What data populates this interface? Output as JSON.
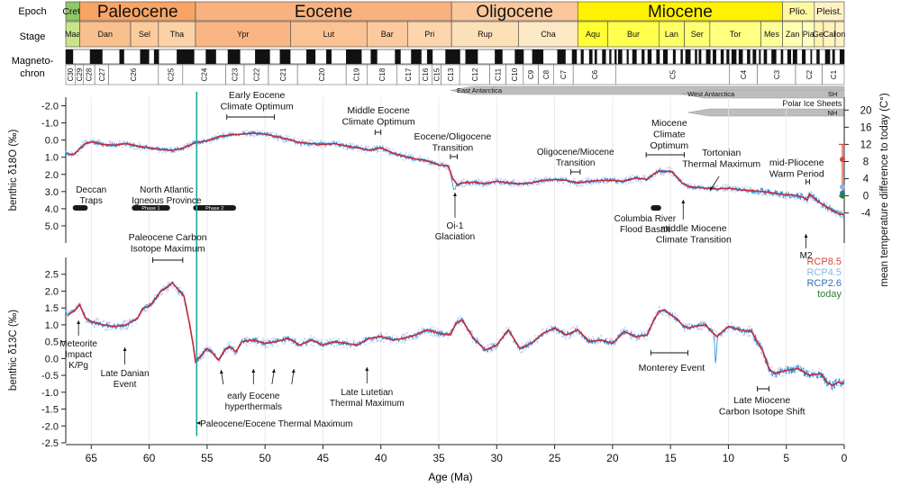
{
  "rows": {
    "epoch": "Epoch",
    "stage": "Stage",
    "magneto1": "Magneto-",
    "magneto2": "chron"
  },
  "epochs": [
    {
      "name": "Cret.",
      "start": 67.2,
      "end": 66.0,
      "color": "#8fc866",
      "label_size": "small"
    },
    {
      "name": "Paleocene",
      "start": 66.0,
      "end": 56.0,
      "color": "#f7a464",
      "label_size": "large"
    },
    {
      "name": "Eocene",
      "start": 56.0,
      "end": 33.9,
      "color": "#f8b27f",
      "label_size": "large"
    },
    {
      "name": "Oligocene",
      "start": 33.9,
      "end": 23.0,
      "color": "#fbc79b",
      "label_size": "large"
    },
    {
      "name": "Miocene",
      "start": 23.0,
      "end": 5.33,
      "color": "#fff200",
      "label_size": "large"
    },
    {
      "name": "Plio.",
      "start": 5.33,
      "end": 2.58,
      "color": "#fff7a1",
      "label_size": "small"
    },
    {
      "name": "Pleist.",
      "start": 2.58,
      "end": 0.0,
      "color": "#fff3c6",
      "label_size": "small"
    }
  ],
  "stages": [
    {
      "name": "Maa",
      "start": 67.2,
      "end": 66.0,
      "color": "#c9e38a"
    },
    {
      "name": "Dan",
      "start": 66.0,
      "end": 61.6,
      "color": "#f9bf8d"
    },
    {
      "name": "Sel",
      "start": 61.6,
      "end": 59.2,
      "color": "#fbcb9c"
    },
    {
      "name": "Tha",
      "start": 59.2,
      "end": 56.0,
      "color": "#fbd2a6"
    },
    {
      "name": "Ypr",
      "start": 56.0,
      "end": 47.8,
      "color": "#f9b684"
    },
    {
      "name": "Lut",
      "start": 47.8,
      "end": 41.2,
      "color": "#fbc293"
    },
    {
      "name": "Bar",
      "start": 41.2,
      "end": 37.7,
      "color": "#fcca9e"
    },
    {
      "name": "Pri",
      "start": 37.7,
      "end": 33.9,
      "color": "#fcd5ad"
    },
    {
      "name": "Rup",
      "start": 33.9,
      "end": 28.1,
      "color": "#fce0b8"
    },
    {
      "name": "Cha",
      "start": 28.1,
      "end": 23.0,
      "color": "#fde8c6"
    },
    {
      "name": "Aqu",
      "start": 23.0,
      "end": 20.4,
      "color": "#ffff33"
    },
    {
      "name": "Bur",
      "start": 20.4,
      "end": 16.0,
      "color": "#ffff4d"
    },
    {
      "name": "Lan",
      "start": 16.0,
      "end": 13.8,
      "color": "#ffff66"
    },
    {
      "name": "Ser",
      "start": 13.8,
      "end": 11.6,
      "color": "#ffff73"
    },
    {
      "name": "Tor",
      "start": 11.6,
      "end": 7.2,
      "color": "#ffff80"
    },
    {
      "name": "Mes",
      "start": 7.2,
      "end": 5.33,
      "color": "#ffff99"
    },
    {
      "name": "Zan",
      "start": 5.33,
      "end": 3.6,
      "color": "#ffffb3"
    },
    {
      "name": "Pia",
      "start": 3.6,
      "end": 2.58,
      "color": "#ffffbf"
    },
    {
      "name": "Gel",
      "start": 2.58,
      "end": 1.8,
      "color": "#fff2ae"
    },
    {
      "name": "Cal",
      "start": 1.8,
      "end": 0.78,
      "color": "#fff2ba"
    },
    {
      "name": "Ion",
      "start": 0.78,
      "end": 0.0,
      "color": "#fff2c7"
    }
  ],
  "chrons": [
    {
      "name": "C30",
      "start": 67.2,
      "end": 66.4
    },
    {
      "name": "C29",
      "start": 66.4,
      "end": 65.7
    },
    {
      "name": "C28",
      "start": 65.7,
      "end": 64.7
    },
    {
      "name": "C27",
      "start": 64.7,
      "end": 63.5
    },
    {
      "name": "C26",
      "start": 63.5,
      "end": 59.2
    },
    {
      "name": "C25",
      "start": 59.2,
      "end": 57.1
    },
    {
      "name": "C24",
      "start": 57.1,
      "end": 53.4
    },
    {
      "name": "C23",
      "start": 53.4,
      "end": 51.8
    },
    {
      "name": "C22",
      "start": 51.8,
      "end": 49.7
    },
    {
      "name": "C21",
      "start": 49.7,
      "end": 47.2
    },
    {
      "name": "C20",
      "start": 47.2,
      "end": 43.0
    },
    {
      "name": "C19",
      "start": 43.0,
      "end": 41.2
    },
    {
      "name": "C18",
      "start": 41.2,
      "end": 38.6
    },
    {
      "name": "C17",
      "start": 38.6,
      "end": 36.7
    },
    {
      "name": "C16",
      "start": 36.7,
      "end": 35.6
    },
    {
      "name": "C15",
      "start": 35.6,
      "end": 34.8
    },
    {
      "name": "C13",
      "start": 34.8,
      "end": 33.2
    },
    {
      "name": "C12",
      "start": 33.2,
      "end": 30.6
    },
    {
      "name": "C11",
      "start": 30.6,
      "end": 29.2
    },
    {
      "name": "C10",
      "start": 29.2,
      "end": 27.7
    },
    {
      "name": "C9",
      "start": 27.7,
      "end": 26.4
    },
    {
      "name": "C8",
      "start": 26.4,
      "end": 25.1
    },
    {
      "name": "C7",
      "start": 25.1,
      "end": 23.4
    },
    {
      "name": "C6",
      "start": 23.4,
      "end": 19.7
    },
    {
      "name": "C5",
      "start": 19.7,
      "end": 9.9
    },
    {
      "name": "C4",
      "start": 9.9,
      "end": 7.5
    },
    {
      "name": "C3",
      "start": 7.5,
      "end": 4.2
    },
    {
      "name": "C2",
      "start": 4.2,
      "end": 1.9
    },
    {
      "name": "C1",
      "start": 1.9,
      "end": 0.0
    }
  ],
  "ice_sheets": [
    {
      "name": "East Antarctica",
      "start": 34.0,
      "end": 0.0,
      "tag": ""
    },
    {
      "name": "West Antarctica",
      "start": 14.0,
      "end": 0.0,
      "tag": "SH"
    },
    {
      "name": "Polar Ice Sheets",
      "start": 0.0,
      "end": 0.0,
      "tag": ""
    },
    {
      "name": "",
      "start": 3.0,
      "end": 0.0,
      "tag": "NH"
    }
  ],
  "chart_data": {
    "type": "line",
    "xlabel": "Age (Ma)",
    "xlim": [
      67.2,
      0.0
    ],
    "x_ticks": [
      65,
      60,
      55,
      50,
      45,
      40,
      35,
      30,
      25,
      20,
      15,
      10,
      5,
      0
    ],
    "panels": [
      {
        "name": "d18O",
        "ylabel": "benthic δ18O (‰)",
        "ylim": [
          -2.5,
          6.0
        ],
        "inverted": true,
        "y_ticks": [
          -2.0,
          -1.0,
          0.0,
          1.0,
          2.0,
          3.0,
          4.0,
          5.0
        ],
        "tick_labels": [
          "-2.0",
          "-1.0",
          "0.0",
          "1.0",
          "2.0",
          "3.0",
          "4.0",
          "5.0"
        ],
        "right_axis": {
          "label": "mean temperature difference to today (C°)",
          "ticks": [
            20,
            16,
            12,
            8,
            4,
            0,
            -4
          ],
          "tick_labels": [
            "20",
            "16",
            "12",
            "8",
            "4",
            "0",
            "-4"
          ],
          "d18o_at_zero": 3.25,
          "d18o_per_degree": -0.25
        },
        "series_smooth": {
          "x": [
            67,
            66.5,
            66,
            65.5,
            65,
            64,
            63,
            62,
            61,
            60,
            59,
            58,
            57,
            56,
            55,
            54,
            53,
            52,
            51,
            50,
            49,
            48,
            47,
            46,
            45,
            44,
            43,
            42,
            41,
            40,
            39,
            38,
            37,
            36,
            35,
            34.2,
            33.8,
            33.4,
            33,
            32,
            31,
            30,
            29,
            28,
            27,
            26,
            25,
            24,
            23,
            22,
            21,
            20,
            19,
            18,
            17,
            16.5,
            16,
            15.5,
            15,
            14.5,
            14,
            13.5,
            13,
            12,
            11,
            10,
            9,
            8,
            7,
            6,
            5,
            4.5,
            4,
            3.5,
            3.2,
            3,
            2.5,
            2,
            1.5,
            1,
            0.5,
            0
          ],
          "values": [
            0.8,
            0.85,
            0.5,
            0.2,
            0.1,
            0.25,
            0.3,
            0.2,
            0.35,
            0.45,
            0.55,
            0.6,
            0.45,
            0.15,
            0.05,
            -0.2,
            -0.3,
            -0.35,
            -0.4,
            -0.35,
            -0.2,
            -0.05,
            0.15,
            0.2,
            0.25,
            0.2,
            0.35,
            0.45,
            0.6,
            0.45,
            0.75,
            0.95,
            1.1,
            1.2,
            1.45,
            1.5,
            2.25,
            2.6,
            2.5,
            2.45,
            2.55,
            2.4,
            2.5,
            2.55,
            2.5,
            2.35,
            2.3,
            2.35,
            2.5,
            2.4,
            2.35,
            2.35,
            2.4,
            2.2,
            2.3,
            2.0,
            1.8,
            1.85,
            1.8,
            2.1,
            2.5,
            2.7,
            2.75,
            2.8,
            2.85,
            2.8,
            2.9,
            2.95,
            3.0,
            3.1,
            3.2,
            3.2,
            3.25,
            3.35,
            3.5,
            3.15,
            3.45,
            3.7,
            3.9,
            4.1,
            4.3,
            4.35
          ]
        }
      },
      {
        "name": "d13C",
        "ylabel": "benthic δ13C (‰)",
        "ylim": [
          -2.5,
          3.0
        ],
        "inverted": false,
        "y_ticks": [
          2.5,
          2.0,
          1.5,
          1.0,
          0.5,
          0.0,
          -0.5,
          -1.0,
          -1.5,
          -2.0,
          -2.5
        ],
        "tick_labels": [
          "2.5",
          "2.0",
          "1.5",
          "1.0",
          "0.5",
          "0.0",
          "-0.5",
          "-1.0",
          "-1.5",
          "-2.0",
          "-2.5"
        ],
        "series_smooth": {
          "x": [
            67,
            66.5,
            66,
            65.5,
            65,
            64,
            63,
            62,
            61,
            60.5,
            60,
            59.5,
            59,
            58.5,
            58,
            57.5,
            57,
            56.5,
            56.2,
            56,
            55.5,
            55,
            54.5,
            54,
            53.5,
            53,
            52.5,
            52,
            51,
            50,
            49,
            48,
            47,
            46,
            45,
            44,
            43,
            42,
            41,
            40,
            39,
            38,
            37,
            36,
            35,
            34,
            33.5,
            33,
            32,
            31,
            30,
            29,
            28,
            27,
            26,
            25,
            24,
            23,
            22,
            21,
            20,
            19,
            18,
            17,
            16.5,
            16,
            15.5,
            15,
            14.5,
            14,
            13.5,
            13,
            12,
            11,
            10,
            9,
            8,
            7.5,
            7,
            6.5,
            6,
            5,
            4,
            3,
            2,
            1.5,
            1,
            0.5,
            0
          ],
          "values": [
            1.3,
            1.4,
            1.6,
            1.2,
            1.1,
            1.0,
            0.95,
            1.0,
            1.2,
            1.5,
            1.55,
            1.75,
            2.0,
            2.1,
            2.25,
            2.05,
            1.85,
            1.0,
            0.4,
            -0.1,
            0.1,
            0.3,
            0.15,
            -0.05,
            0.25,
            0.35,
            0.2,
            0.5,
            0.55,
            0.45,
            0.5,
            0.6,
            0.4,
            0.55,
            0.4,
            0.5,
            0.45,
            0.4,
            0.6,
            0.65,
            0.55,
            0.6,
            0.7,
            0.85,
            0.75,
            0.7,
            1.05,
            1.15,
            0.6,
            0.25,
            0.4,
            0.85,
            0.3,
            0.45,
            0.75,
            0.9,
            0.7,
            0.85,
            0.5,
            0.55,
            0.45,
            0.8,
            0.65,
            0.7,
            1.1,
            1.4,
            1.45,
            1.3,
            1.2,
            1.0,
            0.9,
            0.95,
            1.0,
            0.65,
            0.95,
            0.85,
            0.8,
            0.5,
            0.2,
            -0.3,
            -0.45,
            -0.35,
            -0.3,
            -0.5,
            -0.45,
            -0.7,
            -0.8,
            -0.7,
            -0.75
          ]
        }
      }
    ],
    "projections": {
      "title_items": [
        {
          "name": "RCP8.5",
          "color": "#d24a3c",
          "temp": 8.5
        },
        {
          "name": "RCP4.5",
          "color": "#8ab6e2",
          "temp": 2.1
        },
        {
          "name": "RCP2.6",
          "color": "#2f70b5",
          "temp": 0.6
        },
        {
          "name": "today",
          "color": "#2f7d3a",
          "temp": 0.0
        }
      ],
      "range_top": 12.0,
      "range_bottom": 0.0
    },
    "lip_bars": [
      {
        "start": 66.6,
        "end": 65.3,
        "label": ""
      },
      {
        "start": 61.5,
        "end": 58.2,
        "label": "Phase 1"
      },
      {
        "start": 56.2,
        "end": 52.5,
        "label": "Phase 2"
      },
      {
        "start": 16.7,
        "end": 15.8,
        "label": ""
      }
    ],
    "annotations": {
      "deccan": [
        "Deccan",
        "Traps"
      ],
      "nap": [
        "North Atlantic",
        "Igneous Province"
      ],
      "eeco": [
        "Early Eocene",
        "Climate Optimum"
      ],
      "meco": [
        "Middle Eocene",
        "Climate Optimum"
      ],
      "eot": [
        "Eocene/Oligocene",
        "Transition"
      ],
      "oi1": [
        "Oi-1",
        "Glaciation"
      ],
      "omt": [
        "Oligocene/Miocene",
        "Transition"
      ],
      "mco": [
        "Miocene",
        "Climate",
        "Optimum"
      ],
      "crfb": [
        "Columbia River",
        "Flood Basalt"
      ],
      "mmct": [
        "middle Miocene",
        "Climate Transition"
      ],
      "ttm": [
        "Tortonian",
        "Thermal Maximum"
      ],
      "mpwp": [
        "mid-Pliocene",
        "Warm Period"
      ],
      "m2": [
        "M2"
      ],
      "pcim": [
        "Paleocene Carbon",
        "Isotope Maximum"
      ],
      "kpg": [
        "Meteorite",
        "Impact",
        "K/Pg"
      ],
      "lde": [
        "Late Danian",
        "Event"
      ],
      "eeh": [
        "early Eocene",
        "hyperthermals"
      ],
      "llt": [
        "Late Lutetian",
        "Thermal Maximum"
      ],
      "petm": [
        "Paleocene/Eocene Thermal Maximum"
      ],
      "monterey": [
        "Monterey Event"
      ],
      "lmcis": [
        "Late Miocene",
        "Carbon Isotope Shift"
      ]
    }
  }
}
